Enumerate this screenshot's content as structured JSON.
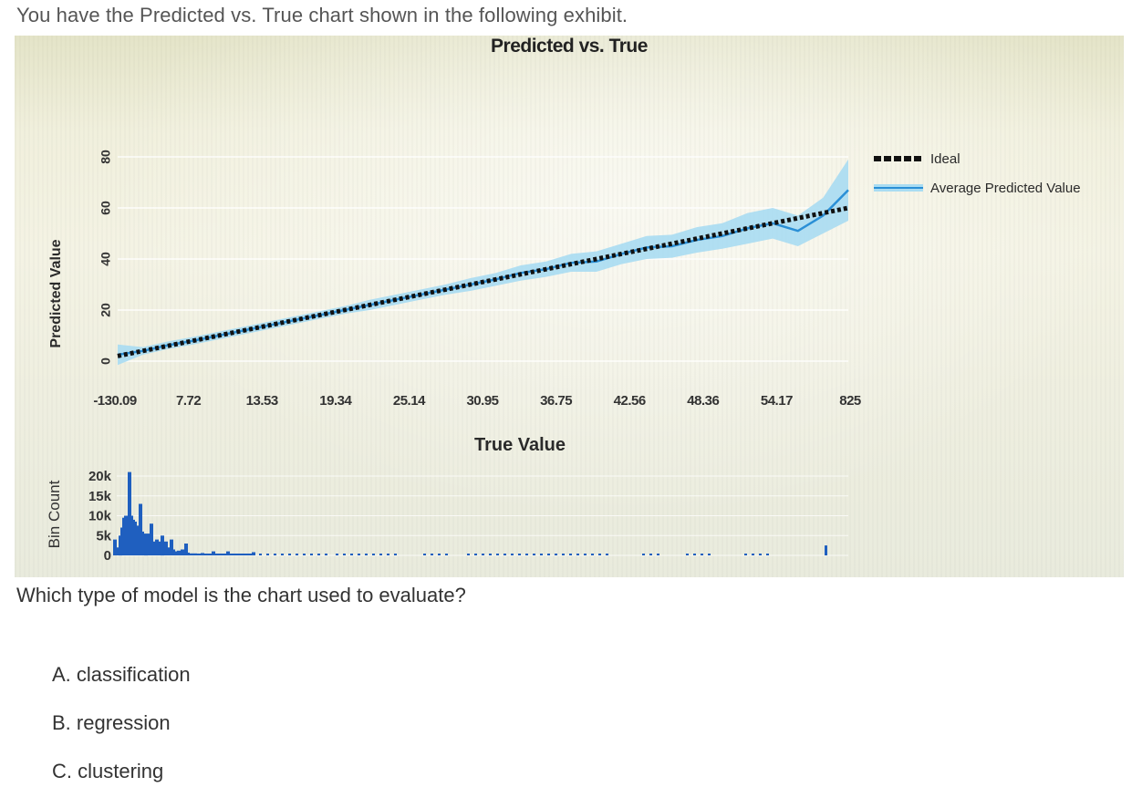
{
  "intro_text": "You have the Predicted vs. True chart shown in the following exhibit.",
  "question_text": "Which type of model is the chart used to evaluate?",
  "options": [
    {
      "label": "A. classification"
    },
    {
      "label": "B. regression"
    },
    {
      "label": "C. clustering"
    }
  ],
  "colors": {
    "ideal_line": "#111111",
    "avg_line": "#2a8fd6",
    "confidence_band": "#a9dcf2",
    "bin_bars": "#1f5fbf"
  },
  "chart_data": [
    {
      "type": "line",
      "title": "Predicted vs. True",
      "xlabel": "True Value",
      "ylabel": "Predicted Value",
      "x_tick_labels": [
        "-130.09",
        "7.72",
        "13.53",
        "19.34",
        "25.14",
        "30.95",
        "36.75",
        "42.56",
        "48.36",
        "54.17",
        "825"
      ],
      "y_ticks": [
        0,
        20,
        40,
        60,
        80
      ],
      "ylim": [
        0,
        80
      ],
      "legend_position": "top-right",
      "grid": true,
      "series": [
        {
          "name": "Ideal",
          "style": "dotted",
          "x": [
            1,
            30
          ],
          "y": [
            2,
            60
          ]
        },
        {
          "name": "Average Predicted Value",
          "style": "solid-with-band",
          "x": [
            1,
            2,
            3,
            4,
            5,
            6,
            7,
            8,
            9,
            10,
            11,
            12,
            13,
            14,
            15,
            16,
            17,
            18,
            19,
            20,
            21,
            22,
            23,
            24,
            25,
            26,
            27,
            28,
            29,
            30
          ],
          "y": [
            2.5,
            4,
            6.2,
            8,
            10,
            12,
            14,
            16,
            18,
            20,
            22,
            24,
            26,
            28,
            30,
            32,
            34.5,
            36,
            38.5,
            39,
            42,
            44.5,
            45,
            47.5,
            49,
            52,
            54,
            51,
            57,
            67
          ],
          "band_halfwidth": [
            4,
            1.5,
            1.5,
            1.5,
            1.5,
            1.5,
            1.5,
            1.5,
            1.5,
            1.5,
            2,
            2,
            2,
            2,
            2.5,
            2.5,
            3,
            3,
            3.5,
            4,
            4,
            4.5,
            4.5,
            5,
            5,
            6,
            6,
            6,
            7,
            12
          ]
        }
      ]
    },
    {
      "type": "bar",
      "ylabel": "Bin Count",
      "y_tick_labels": [
        "20k",
        "15k",
        "10k",
        "5k",
        "0"
      ],
      "ylim": [
        0,
        20000
      ],
      "bins": [
        {
          "pos": 0.0,
          "value": 4000
        },
        {
          "pos": 0.5,
          "value": 1000
        },
        {
          "pos": 1.0,
          "value": 2000
        },
        {
          "pos": 1.5,
          "value": 5000
        },
        {
          "pos": 2.0,
          "value": 7000
        },
        {
          "pos": 2.5,
          "value": 9500
        },
        {
          "pos": 3.0,
          "value": 10000
        },
        {
          "pos": 3.5,
          "value": 10000
        },
        {
          "pos": 4.0,
          "value": 21000
        },
        {
          "pos": 4.5,
          "value": 10000
        },
        {
          "pos": 5.0,
          "value": 9000
        },
        {
          "pos": 5.5,
          "value": 8500
        },
        {
          "pos": 6.0,
          "value": 7500
        },
        {
          "pos": 6.5,
          "value": 7000
        },
        {
          "pos": 7.0,
          "value": 13000
        },
        {
          "pos": 7.5,
          "value": 6000
        },
        {
          "pos": 8.0,
          "value": 5500
        },
        {
          "pos": 8.5,
          "value": 5000
        },
        {
          "pos": 9.0,
          "value": 5500
        },
        {
          "pos": 9.5,
          "value": 4500
        },
        {
          "pos": 10.0,
          "value": 8000
        },
        {
          "pos": 10.5,
          "value": 3500
        },
        {
          "pos": 11.0,
          "value": 3000
        },
        {
          "pos": 11.5,
          "value": 4000
        },
        {
          "pos": 12.0,
          "value": 3500
        },
        {
          "pos": 12.5,
          "value": 2500
        },
        {
          "pos": 13.0,
          "value": 5000
        },
        {
          "pos": 13.5,
          "value": 2000
        },
        {
          "pos": 14.0,
          "value": 3500
        },
        {
          "pos": 14.5,
          "value": 1500
        },
        {
          "pos": 15.0,
          "value": 2000
        },
        {
          "pos": 15.5,
          "value": 4000
        },
        {
          "pos": 16.0,
          "value": 1500
        },
        {
          "pos": 16.5,
          "value": 1000
        },
        {
          "pos": 17.0,
          "value": 1000
        },
        {
          "pos": 17.5,
          "value": 1200
        },
        {
          "pos": 18.0,
          "value": 1000
        },
        {
          "pos": 18.5,
          "value": 1500
        },
        {
          "pos": 19.0,
          "value": 1000
        },
        {
          "pos": 19.5,
          "value": 3000
        },
        {
          "pos": 20.0,
          "value": 700
        },
        {
          "pos": 21.0,
          "value": 500
        },
        {
          "pos": 22.0,
          "value": 500
        },
        {
          "pos": 23.0,
          "value": 400
        },
        {
          "pos": 24.0,
          "value": 600
        },
        {
          "pos": 25.0,
          "value": 400
        },
        {
          "pos": 26.0,
          "value": 300
        },
        {
          "pos": 27.0,
          "value": 1000
        },
        {
          "pos": 28.0,
          "value": 300
        },
        {
          "pos": 29.0,
          "value": 300
        },
        {
          "pos": 30.0,
          "value": 200
        },
        {
          "pos": 31.0,
          "value": 1000
        },
        {
          "pos": 32.0,
          "value": 200
        },
        {
          "pos": 33.0,
          "value": 200
        },
        {
          "pos": 34.0,
          "value": 300
        },
        {
          "pos": 35.0,
          "value": 300
        },
        {
          "pos": 36.0,
          "value": 200
        },
        {
          "pos": 37.0,
          "value": 200
        },
        {
          "pos": 38.0,
          "value": 800
        },
        {
          "pos": 40.0,
          "value": 150
        },
        {
          "pos": 42.0,
          "value": 150
        },
        {
          "pos": 44.0,
          "value": 150
        },
        {
          "pos": 46.0,
          "value": 150
        },
        {
          "pos": 48.0,
          "value": 150
        },
        {
          "pos": 50.0,
          "value": 150
        },
        {
          "pos": 52.0,
          "value": 150
        },
        {
          "pos": 54.0,
          "value": 150
        },
        {
          "pos": 56.0,
          "value": 150
        },
        {
          "pos": 58.0,
          "value": 150
        },
        {
          "pos": 61.0,
          "value": 150
        },
        {
          "pos": 63.0,
          "value": 150
        },
        {
          "pos": 65.0,
          "value": 150
        },
        {
          "pos": 67.0,
          "value": 150
        },
        {
          "pos": 69.0,
          "value": 150
        },
        {
          "pos": 71.0,
          "value": 150
        },
        {
          "pos": 73.0,
          "value": 150
        },
        {
          "pos": 75.0,
          "value": 150
        },
        {
          "pos": 77.0,
          "value": 150
        },
        {
          "pos": 85.0,
          "value": 150
        },
        {
          "pos": 87.0,
          "value": 150
        },
        {
          "pos": 89.0,
          "value": 150
        },
        {
          "pos": 91.0,
          "value": 150
        },
        {
          "pos": 97.0,
          "value": 150
        },
        {
          "pos": 99.0,
          "value": 150
        },
        {
          "pos": 101.0,
          "value": 150
        },
        {
          "pos": 103.0,
          "value": 150
        },
        {
          "pos": 105.0,
          "value": 150
        },
        {
          "pos": 107.0,
          "value": 150
        },
        {
          "pos": 109.0,
          "value": 150
        },
        {
          "pos": 111.0,
          "value": 150
        },
        {
          "pos": 113.0,
          "value": 150
        },
        {
          "pos": 115.0,
          "value": 150
        },
        {
          "pos": 117.0,
          "value": 150
        },
        {
          "pos": 119.0,
          "value": 150
        },
        {
          "pos": 121.0,
          "value": 150
        },
        {
          "pos": 123.0,
          "value": 150
        },
        {
          "pos": 125.0,
          "value": 150
        },
        {
          "pos": 127.0,
          "value": 150
        },
        {
          "pos": 129.0,
          "value": 150
        },
        {
          "pos": 131.0,
          "value": 150
        },
        {
          "pos": 133.0,
          "value": 150
        },
        {
          "pos": 135.0,
          "value": 150
        },
        {
          "pos": 145.0,
          "value": 150
        },
        {
          "pos": 147.0,
          "value": 150
        },
        {
          "pos": 149.0,
          "value": 150
        },
        {
          "pos": 157.0,
          "value": 150
        },
        {
          "pos": 159.0,
          "value": 150
        },
        {
          "pos": 161.0,
          "value": 150
        },
        {
          "pos": 163.0,
          "value": 150
        },
        {
          "pos": 173.0,
          "value": 150
        },
        {
          "pos": 175.0,
          "value": 150
        },
        {
          "pos": 177.0,
          "value": 150
        },
        {
          "pos": 179.0,
          "value": 150
        },
        {
          "pos": 195.0,
          "value": 2500
        }
      ]
    }
  ]
}
